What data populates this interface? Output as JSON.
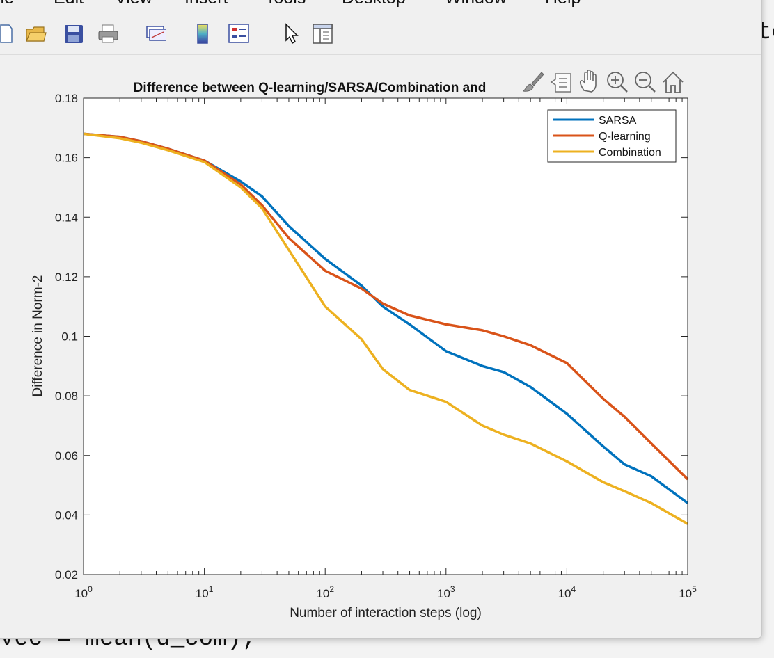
{
  "menu": {
    "items": [
      "ile",
      "Edit",
      "View",
      "Insert",
      "Tools",
      "Desktop",
      "Window",
      "Help"
    ]
  },
  "editor": {
    "code_line": "vec = mean(d_com);",
    "corner_text": "te"
  },
  "toolbar": {
    "icons": [
      "new-file-icon",
      "open-folder-icon",
      "save-icon",
      "print-icon",
      "link-plot-icon",
      "colorbar-icon",
      "legend-icon",
      "pointer-icon",
      "property-inspector-icon"
    ]
  },
  "axes_toolbar": {
    "icons": [
      "brush-icon",
      "data-tips-icon",
      "pan-hand-icon",
      "zoom-in-icon",
      "zoom-out-icon",
      "home-icon"
    ]
  },
  "chart_data": {
    "type": "line",
    "title": "Difference between Q-learning/SARSA/Combination and",
    "xlabel": "Number of interaction steps (log)",
    "ylabel": "Difference in Norm-2",
    "xscale": "log",
    "xlim": [
      1,
      100000
    ],
    "ylim": [
      0.02,
      0.18
    ],
    "xticks": [
      {
        "base": "10",
        "exp": "0"
      },
      {
        "base": "10",
        "exp": "1"
      },
      {
        "base": "10",
        "exp": "2"
      },
      {
        "base": "10",
        "exp": "3"
      },
      {
        "base": "10",
        "exp": "4"
      },
      {
        "base": "10",
        "exp": "5"
      }
    ],
    "yticks": [
      "0.02",
      "0.04",
      "0.06",
      "0.08",
      "0.1",
      "0.12",
      "0.14",
      "0.16",
      "0.18"
    ],
    "grid": false,
    "legend_position": "top-right",
    "series": [
      {
        "name": "SARSA",
        "color": "#0072BD",
        "x": [
          1,
          2,
          3,
          5,
          10,
          20,
          30,
          50,
          100,
          200,
          300,
          500,
          1000,
          2000,
          3000,
          5000,
          10000,
          20000,
          30000,
          50000,
          100000
        ],
        "y": [
          0.168,
          0.167,
          0.1655,
          0.163,
          0.159,
          0.152,
          0.147,
          0.137,
          0.126,
          0.117,
          0.11,
          0.104,
          0.095,
          0.09,
          0.088,
          0.083,
          0.074,
          0.063,
          0.057,
          0.053,
          0.044
        ]
      },
      {
        "name": "Q-learning",
        "color": "#D95319",
        "x": [
          1,
          2,
          3,
          5,
          10,
          20,
          30,
          50,
          100,
          200,
          300,
          500,
          1000,
          2000,
          3000,
          5000,
          10000,
          20000,
          30000,
          50000,
          100000
        ],
        "y": [
          0.168,
          0.167,
          0.1655,
          0.163,
          0.159,
          0.151,
          0.144,
          0.133,
          0.122,
          0.116,
          0.111,
          0.107,
          0.104,
          0.102,
          0.1,
          0.097,
          0.091,
          0.079,
          0.073,
          0.064,
          0.052
        ]
      },
      {
        "name": "Combination",
        "color": "#EDB120",
        "x": [
          1,
          2,
          3,
          5,
          10,
          20,
          30,
          50,
          100,
          200,
          300,
          500,
          1000,
          2000,
          3000,
          5000,
          10000,
          20000,
          30000,
          50000,
          100000
        ],
        "y": [
          0.168,
          0.1665,
          0.165,
          0.1625,
          0.1585,
          0.15,
          0.143,
          0.129,
          0.11,
          0.099,
          0.089,
          0.082,
          0.078,
          0.07,
          0.067,
          0.064,
          0.058,
          0.051,
          0.048,
          0.044,
          0.037
        ]
      }
    ]
  }
}
